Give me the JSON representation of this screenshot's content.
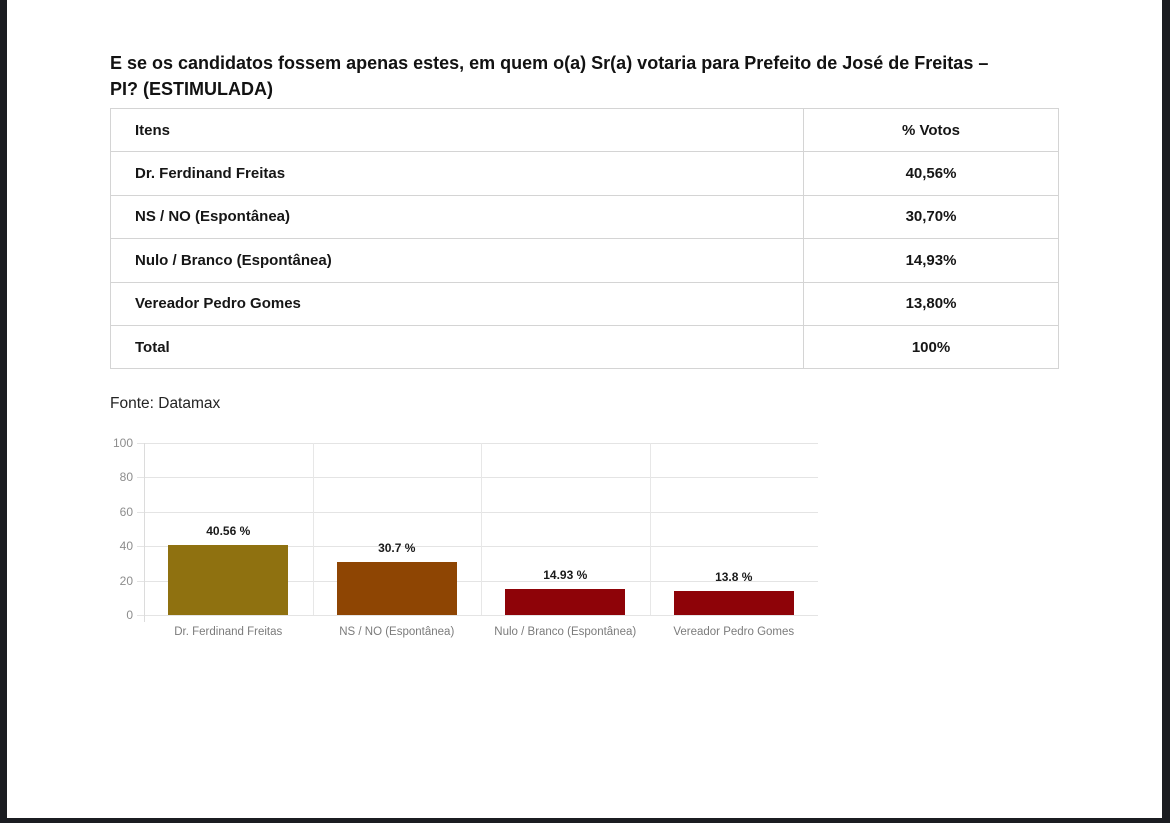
{
  "page": {
    "title": "E se os candidatos fossem apenas estes, em quem o(a) Sr(a) votaria para Prefeito de José de Freitas – PI? (ESTIMULADA)",
    "source": "Fonte: Datamax"
  },
  "table": {
    "headers": [
      "Itens",
      "% Votos"
    ],
    "rows": [
      {
        "item": "Dr. Ferdinand Freitas",
        "votes": "40,56%"
      },
      {
        "item": "NS / NO (Espontânea)",
        "votes": "30,70%"
      },
      {
        "item": "Nulo / Branco (Espontânea)",
        "votes": "14,93%"
      },
      {
        "item": "Vereador Pedro Gomes",
        "votes": "13,80%"
      },
      {
        "item": "Total",
        "votes": "100%"
      }
    ]
  },
  "chart_data": {
    "type": "bar",
    "title": "",
    "xlabel": "",
    "ylabel": "",
    "categories": [
      "Dr. Ferdinand Freitas",
      "NS / NO (Espontânea)",
      "Nulo / Branco (Espontânea)",
      "Vereador Pedro Gomes"
    ],
    "values": [
      40.56,
      30.7,
      14.93,
      13.8
    ],
    "value_labels": [
      "40.56 %",
      "30.7 %",
      "14.93 %",
      "13.8 %"
    ],
    "bar_colors": [
      "#8f7110",
      "#8e4503",
      "#8e0308",
      "#8e0308"
    ],
    "ylim": [
      0,
      100
    ],
    "yticks": [
      0,
      20,
      40,
      60,
      80,
      100
    ],
    "grid": true,
    "legend": "none"
  },
  "colors": {
    "viewer_edge": "#1b1d21",
    "table_border": "#d4d4d4",
    "gridline": "#e4e4e4",
    "axis_label": "#8d8d8d",
    "category_label": "#7b7b7b",
    "text": "#161616"
  }
}
